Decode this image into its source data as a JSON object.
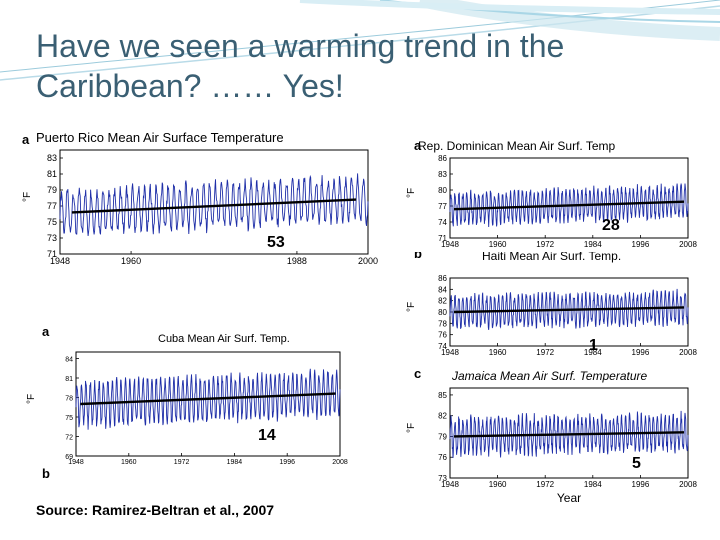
{
  "slide": {
    "title_line1": "Have we seen a warming trend in the",
    "title_line2": "Caribbean? …… Yes!",
    "source": "Source: Ramirez-Beltran et al., 2007",
    "accent_color": "#3a5f73"
  },
  "labels": {
    "pr": "53",
    "dr": "28",
    "haiti": "1",
    "cuba": "14",
    "jamaica": "5"
  },
  "chart_data": [
    {
      "type": "line",
      "panel_letter": "a",
      "title": "Puerto Rico Mean Air Surface Temperature",
      "ylabel": "°F",
      "xlabel": "",
      "x_ticks": [
        "1948",
        "1960",
        "1988",
        "2000"
      ],
      "y_ticks": [
        71,
        73,
        75,
        77,
        79,
        81,
        83
      ],
      "xlim": [
        1948,
        2000
      ],
      "ylim": [
        71,
        84
      ],
      "trend": {
        "start": [
          1950,
          76.2
        ],
        "end": [
          1998,
          77.8
        ]
      },
      "monthly_mean": 77,
      "seasonal_amplitude": 2.6,
      "series_color": "#1f2fa8",
      "trend_color": "#000000"
    },
    {
      "type": "line",
      "panel_letter": "a",
      "title": "Rep. Dominican Mean Air Surf. Temp",
      "ylabel": "°F",
      "xlabel": "",
      "x_ticks": [
        "1948",
        "1960",
        "1972",
        "1984",
        "1996",
        "2008"
      ],
      "y_ticks": [
        71,
        74,
        77,
        80,
        83,
        86
      ],
      "xlim": [
        1948,
        2008
      ],
      "ylim": [
        71,
        86
      ],
      "trend": {
        "start": [
          1949,
          76.4
        ],
        "end": [
          2007,
          77.8
        ]
      },
      "monthly_mean": 77,
      "seasonal_amplitude": 2.8,
      "series_color": "#1f2fa8",
      "trend_color": "#000000"
    },
    {
      "type": "line",
      "panel_letter": "b",
      "title": "Haiti Mean Air Surf. Temp.",
      "ylabel": "°F",
      "xlabel": "",
      "x_ticks": [
        "1948",
        "1960",
        "1972",
        "1984",
        "1996",
        "2008"
      ],
      "y_ticks": [
        74,
        76,
        78,
        80,
        82,
        84,
        86
      ],
      "xlim": [
        1948,
        2008
      ],
      "ylim": [
        74,
        86
      ],
      "trend": {
        "start": [
          1949,
          80.0
        ],
        "end": [
          2007,
          80.8
        ]
      },
      "monthly_mean": 80.4,
      "seasonal_amplitude": 2.6,
      "series_color": "#1f2fa8",
      "trend_color": "#000000"
    },
    {
      "type": "line",
      "panel_letter": "c",
      "title": "Jamaica Mean Air Surf. Temperature",
      "ylabel": "°F",
      "xlabel": "Year",
      "x_ticks": [
        "1948",
        "1960",
        "1972",
        "1984",
        "1996",
        "2008"
      ],
      "y_ticks": [
        73,
        76,
        79,
        82,
        85
      ],
      "xlim": [
        1948,
        2008
      ],
      "ylim": [
        73,
        86
      ],
      "trend": {
        "start": [
          1949,
          79.0
        ],
        "end": [
          2007,
          79.6
        ]
      },
      "monthly_mean": 79.3,
      "seasonal_amplitude": 2.4,
      "series_color": "#1f2fa8",
      "trend_color": "#000000"
    },
    {
      "type": "line",
      "panel_letter": "a",
      "panel_letter_bottom": "b",
      "title": "Cuba Mean Air Surf. Temp.",
      "ylabel": "°F",
      "xlabel": "",
      "x_ticks": [
        "1948",
        "1960",
        "1972",
        "1984",
        "1996",
        "2008"
      ],
      "y_ticks": [
        69,
        72,
        75,
        78,
        81,
        84
      ],
      "xlim": [
        1948,
        2008
      ],
      "ylim": [
        69,
        85
      ],
      "trend": {
        "start": [
          1949,
          77.0
        ],
        "end": [
          2007,
          78.6
        ]
      },
      "monthly_mean": 77.8,
      "seasonal_amplitude": 3.2,
      "series_color": "#1f2fa8",
      "trend_color": "#000000"
    }
  ]
}
